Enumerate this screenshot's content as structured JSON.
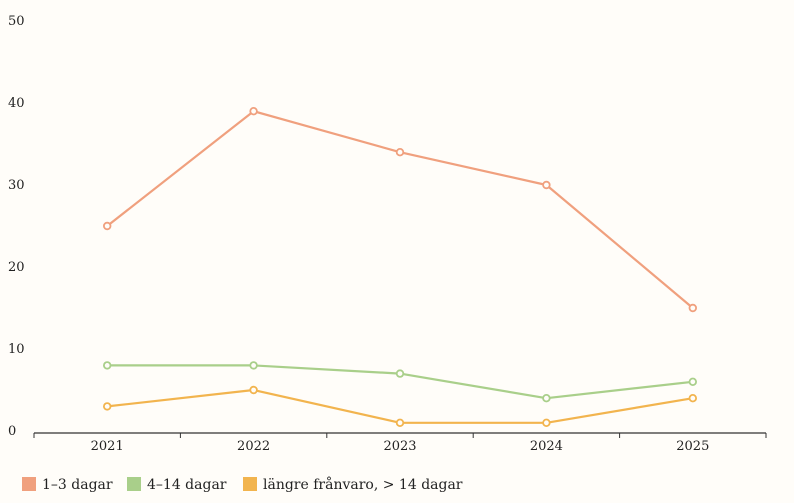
{
  "chart_data": {
    "type": "line",
    "title": "",
    "xlabel": "",
    "ylabel": "",
    "x": [
      "2021",
      "2022",
      "2023",
      "2024",
      "2025"
    ],
    "ylim": [
      0,
      50
    ],
    "yticks": [
      "0",
      "10",
      "20",
      "30",
      "40",
      "50"
    ],
    "grid": false,
    "legend_position": "bottom-left",
    "series": [
      {
        "name": "1–3 dagar",
        "color": "#f0a07e",
        "values": [
          25,
          39,
          34,
          30,
          15
        ]
      },
      {
        "name": "4–14 dagar",
        "color": "#a9cf8a",
        "values": [
          8,
          8,
          7,
          4,
          6
        ]
      },
      {
        "name": "längre frånvaro, > 14 dagar",
        "color": "#f2b44e",
        "values": [
          3,
          5,
          1,
          1,
          4
        ]
      }
    ]
  }
}
